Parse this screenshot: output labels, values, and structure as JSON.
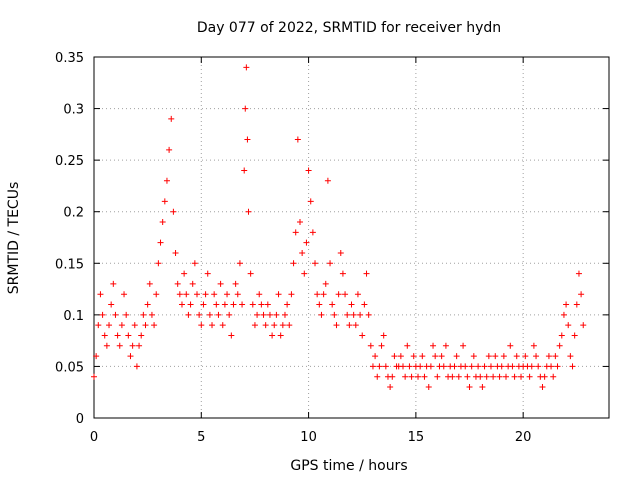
{
  "chart_data": {
    "type": "scatter",
    "title": "Day 077 of 2022, SRMTID for receiver hydn",
    "xlabel": "GPS time / hours",
    "ylabel": "SRMTID / TECUs",
    "xlim": [
      0,
      24
    ],
    "ylim": [
      0,
      0.35
    ],
    "x_ticks": [
      0,
      5,
      10,
      15,
      20
    ],
    "x_tick_labels": [
      "0",
      "5",
      "10",
      "15",
      "20"
    ],
    "y_ticks": [
      0,
      0.05,
      0.1,
      0.15,
      0.2,
      0.25,
      0.3,
      0.35
    ],
    "y_tick_labels": [
      "0",
      "0.05",
      "0.1",
      "0.15",
      "0.2",
      "0.25",
      "0.3",
      "0.35"
    ],
    "grid": true,
    "marker": "+",
    "color": "#ff0000",
    "series": [
      {
        "name": "SRMTID",
        "x": [
          0.0,
          0.1,
          0.2,
          0.3,
          0.4,
          0.5,
          0.6,
          0.7,
          0.8,
          0.9,
          1.0,
          1.1,
          1.2,
          1.3,
          1.4,
          1.5,
          1.6,
          1.7,
          1.8,
          1.9,
          2.0,
          2.1,
          2.2,
          2.3,
          2.4,
          2.5,
          2.6,
          2.7,
          2.8,
          2.9,
          3.0,
          3.1,
          3.2,
          3.3,
          3.4,
          3.5,
          3.6,
          3.7,
          3.8,
          3.9,
          4.0,
          4.1,
          4.2,
          4.3,
          4.4,
          4.5,
          4.6,
          4.7,
          4.8,
          4.9,
          5.0,
          5.1,
          5.2,
          5.3,
          5.4,
          5.5,
          5.6,
          5.7,
          5.8,
          5.9,
          6.0,
          6.1,
          6.2,
          6.3,
          6.4,
          6.5,
          6.6,
          6.7,
          6.8,
          6.9,
          7.0,
          7.05,
          7.1,
          7.15,
          7.2,
          7.3,
          7.4,
          7.5,
          7.6,
          7.7,
          7.8,
          7.9,
          8.0,
          8.1,
          8.2,
          8.3,
          8.4,
          8.5,
          8.6,
          8.7,
          8.8,
          8.9,
          9.0,
          9.1,
          9.2,
          9.3,
          9.4,
          9.5,
          9.6,
          9.7,
          9.8,
          9.9,
          10.0,
          10.1,
          10.2,
          10.3,
          10.4,
          10.5,
          10.6,
          10.7,
          10.8,
          10.9,
          11.0,
          11.1,
          11.2,
          11.3,
          11.4,
          11.5,
          11.6,
          11.7,
          11.8,
          11.9,
          12.0,
          12.1,
          12.2,
          12.3,
          12.4,
          12.5,
          12.6,
          12.7,
          12.8,
          12.9,
          13.0,
          13.1,
          13.2,
          13.3,
          13.4,
          13.5,
          13.6,
          13.7,
          13.8,
          13.9,
          14.0,
          14.1,
          14.2,
          14.3,
          14.4,
          14.5,
          14.6,
          14.7,
          14.8,
          14.9,
          15.0,
          15.1,
          15.2,
          15.3,
          15.4,
          15.5,
          15.6,
          15.7,
          15.8,
          15.9,
          16.0,
          16.1,
          16.2,
          16.3,
          16.4,
          16.5,
          16.6,
          16.7,
          16.8,
          16.9,
          17.0,
          17.1,
          17.2,
          17.3,
          17.4,
          17.5,
          17.6,
          17.7,
          17.8,
          17.9,
          18.0,
          18.1,
          18.2,
          18.3,
          18.4,
          18.5,
          18.6,
          18.7,
          18.8,
          18.9,
          19.0,
          19.1,
          19.2,
          19.3,
          19.4,
          19.5,
          19.6,
          19.7,
          19.8,
          19.9,
          20.0,
          20.1,
          20.2,
          20.3,
          20.4,
          20.5,
          20.6,
          20.7,
          20.8,
          20.9,
          21.0,
          21.1,
          21.2,
          21.3,
          21.4,
          21.5,
          21.6,
          21.7,
          21.8,
          21.9,
          22.0,
          22.1,
          22.2,
          22.3,
          22.4,
          22.5,
          22.6,
          22.7,
          22.8
        ],
        "y": [
          0.04,
          0.06,
          0.09,
          0.12,
          0.1,
          0.08,
          0.07,
          0.09,
          0.11,
          0.13,
          0.1,
          0.08,
          0.07,
          0.09,
          0.12,
          0.1,
          0.08,
          0.06,
          0.07,
          0.09,
          0.05,
          0.07,
          0.08,
          0.1,
          0.09,
          0.11,
          0.13,
          0.1,
          0.09,
          0.12,
          0.15,
          0.17,
          0.19,
          0.21,
          0.23,
          0.26,
          0.29,
          0.2,
          0.16,
          0.13,
          0.12,
          0.11,
          0.14,
          0.12,
          0.1,
          0.11,
          0.13,
          0.15,
          0.12,
          0.1,
          0.09,
          0.11,
          0.12,
          0.14,
          0.1,
          0.09,
          0.12,
          0.11,
          0.1,
          0.13,
          0.09,
          0.11,
          0.12,
          0.1,
          0.08,
          0.11,
          0.13,
          0.12,
          0.15,
          0.11,
          0.24,
          0.3,
          0.34,
          0.27,
          0.2,
          0.14,
          0.11,
          0.09,
          0.1,
          0.12,
          0.11,
          0.1,
          0.09,
          0.11,
          0.1,
          0.08,
          0.09,
          0.1,
          0.12,
          0.08,
          0.09,
          0.1,
          0.11,
          0.09,
          0.12,
          0.15,
          0.18,
          0.27,
          0.19,
          0.16,
          0.14,
          0.17,
          0.24,
          0.21,
          0.18,
          0.15,
          0.12,
          0.11,
          0.1,
          0.12,
          0.13,
          0.23,
          0.15,
          0.11,
          0.1,
          0.09,
          0.12,
          0.16,
          0.14,
          0.12,
          0.1,
          0.09,
          0.11,
          0.1,
          0.09,
          0.12,
          0.1,
          0.08,
          0.11,
          0.14,
          0.1,
          0.07,
          0.05,
          0.06,
          0.04,
          0.05,
          0.07,
          0.08,
          0.05,
          0.04,
          0.03,
          0.04,
          0.06,
          0.05,
          0.05,
          0.06,
          0.05,
          0.04,
          0.07,
          0.05,
          0.04,
          0.06,
          0.05,
          0.04,
          0.05,
          0.06,
          0.04,
          0.05,
          0.03,
          0.05,
          0.07,
          0.06,
          0.04,
          0.05,
          0.06,
          0.05,
          0.07,
          0.04,
          0.05,
          0.04,
          0.05,
          0.06,
          0.04,
          0.05,
          0.07,
          0.05,
          0.04,
          0.03,
          0.05,
          0.06,
          0.04,
          0.05,
          0.04,
          0.03,
          0.05,
          0.04,
          0.06,
          0.05,
          0.04,
          0.06,
          0.05,
          0.04,
          0.05,
          0.06,
          0.04,
          0.05,
          0.07,
          0.05,
          0.04,
          0.06,
          0.05,
          0.04,
          0.05,
          0.06,
          0.05,
          0.04,
          0.05,
          0.07,
          0.06,
          0.05,
          0.04,
          0.03,
          0.04,
          0.05,
          0.06,
          0.05,
          0.04,
          0.06,
          0.05,
          0.07,
          0.08,
          0.1,
          0.11,
          0.09,
          0.06,
          0.05,
          0.08,
          0.11,
          0.14,
          0.12,
          0.09
        ]
      }
    ]
  }
}
